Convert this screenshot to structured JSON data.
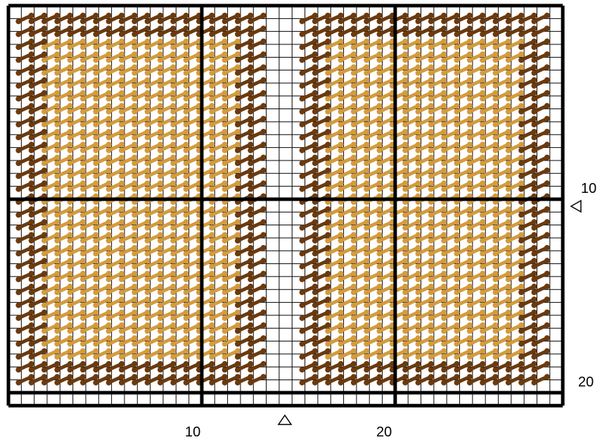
{
  "axis_labels": {
    "x": [
      "10",
      "20"
    ],
    "y": [
      "10",
      "20"
    ]
  }
}
